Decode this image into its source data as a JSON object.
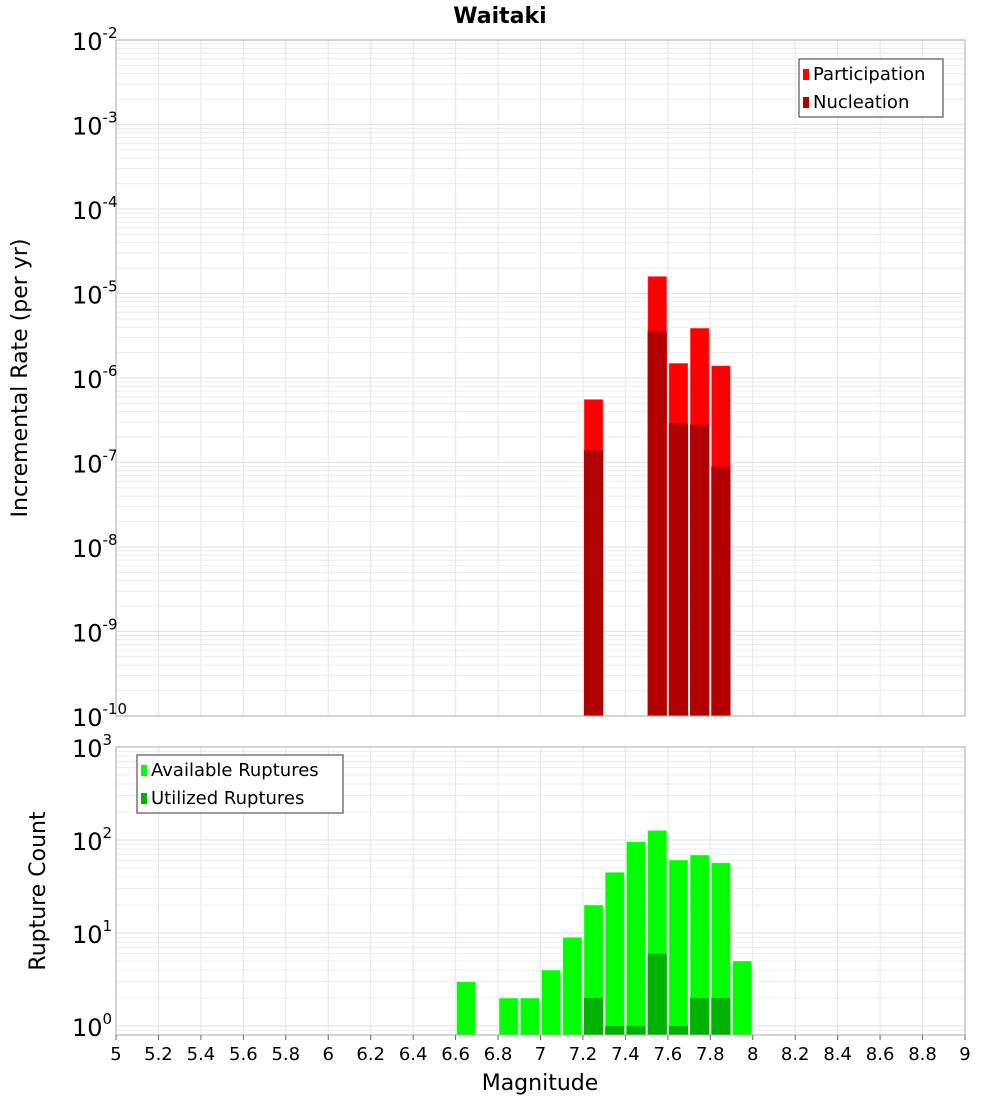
{
  "chart_data": [
    {
      "type": "bar",
      "title": "Waitaki",
      "xlabel": "Magnitude",
      "ylabel": "Incremental Rate (per yr)",
      "yscale": "log",
      "ylim_exp": [
        -10,
        -2
      ],
      "xlim": [
        5,
        9
      ],
      "bin_width": 0.1,
      "legend_position": "top-right",
      "x": [
        7.25,
        7.55,
        7.65,
        7.75,
        7.85
      ],
      "series": [
        {
          "name": "Participation",
          "color": "#ff0000",
          "values": [
            5.6e-07,
            1.6e-05,
            1.5e-06,
            3.9e-06,
            1.4e-06
          ]
        },
        {
          "name": "Nucleation",
          "color": "#b20000",
          "values": [
            1.4e-07,
            3.6e-06,
            2.9e-07,
            2.8e-07,
            8.9e-08
          ]
        }
      ]
    },
    {
      "type": "bar",
      "xlabel": "Magnitude",
      "ylabel": "Rupture Count",
      "yscale": "log",
      "ylim_exp": [
        0,
        3
      ],
      "xlim": [
        5,
        9
      ],
      "bin_width": 0.1,
      "legend_position": "top-left",
      "x": [
        6.65,
        6.85,
        6.95,
        7.05,
        7.15,
        7.25,
        7.35,
        7.45,
        7.55,
        7.65,
        7.75,
        7.85,
        7.95
      ],
      "series": [
        {
          "name": "Available Ruptures",
          "color": "#00ff00",
          "values": [
            3,
            2,
            2,
            4,
            9,
            20,
            45,
            96,
            127,
            61,
            69,
            57,
            5
          ]
        },
        {
          "name": "Utilized Ruptures",
          "color": "#00b200",
          "values": [
            0,
            0,
            0,
            0,
            0,
            2,
            1,
            1,
            6,
            1,
            2,
            2,
            0
          ]
        }
      ],
      "xticks": [
        "5",
        "5.2",
        "5.4",
        "5.6",
        "5.8",
        "6",
        "6.2",
        "6.4",
        "6.6",
        "6.8",
        "7",
        "7.2",
        "7.4",
        "7.6",
        "7.8",
        "8",
        "8.2",
        "8.4",
        "8.6",
        "8.8",
        "9"
      ]
    }
  ]
}
